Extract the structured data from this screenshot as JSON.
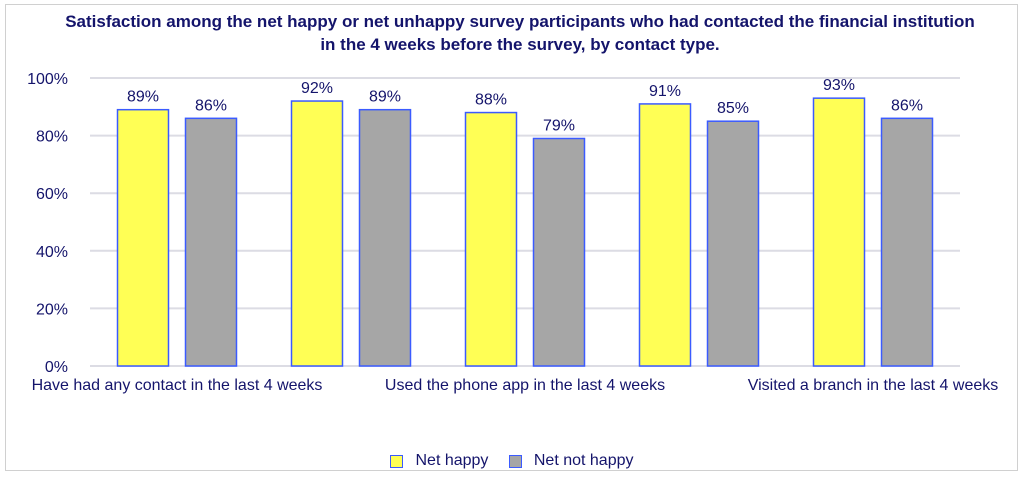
{
  "chart_data": {
    "type": "bar",
    "title": "Satisfaction among the net happy or net unhappy survey participants who had contacted the financial institution in the 4 weeks before the survey, by contact type.",
    "categories": [
      "Have had any contact in the last 4 weeks",
      "",
      "Used the phone app in the last 4 weeks",
      "",
      "Visited a branch in the last 4 weeks"
    ],
    "series": [
      {
        "name": "Net happy",
        "values": [
          89,
          92,
          88,
          91,
          93
        ],
        "color": "#ffff55"
      },
      {
        "name": "Net not happy",
        "values": [
          86,
          89,
          79,
          85,
          86
        ],
        "color": "#a6a6a6"
      }
    ],
    "value_format": "percent",
    "ylim": [
      0,
      100
    ],
    "yticks": [
      "0%",
      "20%",
      "40%",
      "60%",
      "80%",
      "100%"
    ],
    "grid": true,
    "legend": "bottom",
    "bar_border_color": "#3b5bff",
    "xlabel": "",
    "ylabel": ""
  }
}
